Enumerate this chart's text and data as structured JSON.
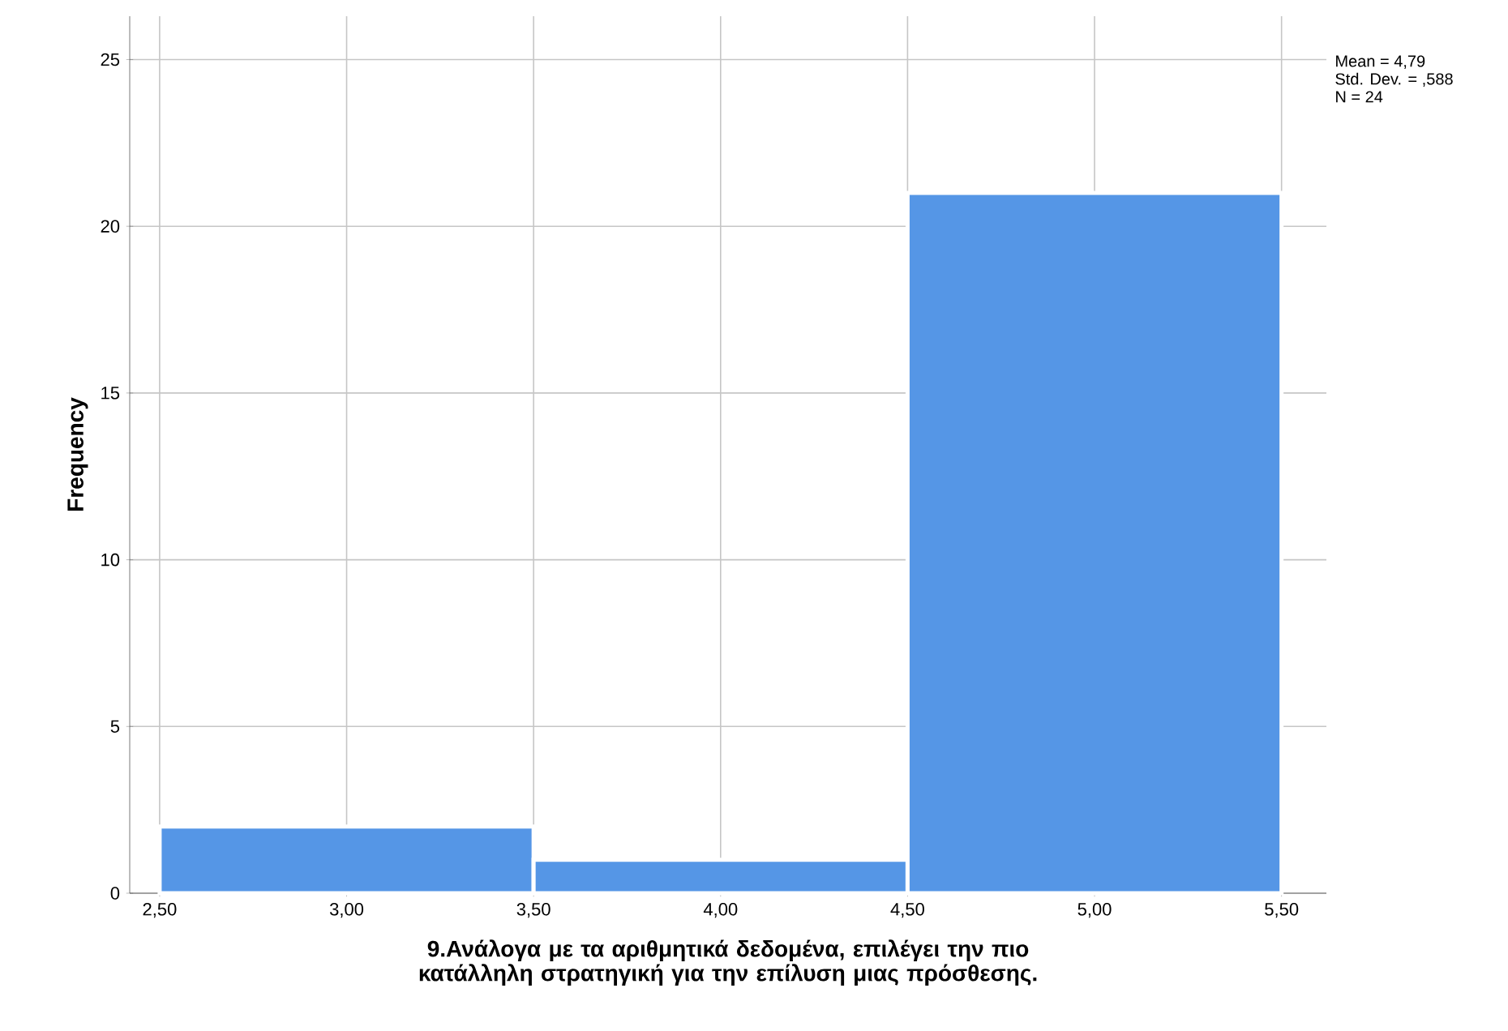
{
  "chart_data": {
    "type": "histogram",
    "xlabel": "9.Ανάλογα με τα αριθμητικά δεδομένα, επιλέγει την πιο κατάλληλη στρατηγική για την επίλυση μιας πρόσθεσης.",
    "ylabel": "Frequency",
    "bins": [
      2.5,
      3.5,
      4.5,
      5.5
    ],
    "values": [
      2,
      1,
      21
    ],
    "color": "#5596e6",
    "xlim": [
      2.42,
      5.62
    ],
    "ylim": [
      0,
      26.3
    ],
    "xticks": [
      {
        "value": 2.5,
        "label": "2,50"
      },
      {
        "value": 3.0,
        "label": "3,00"
      },
      {
        "value": 3.5,
        "label": "3,50"
      },
      {
        "value": 4.0,
        "label": "4,00"
      },
      {
        "value": 4.5,
        "label": "4,50"
      },
      {
        "value": 5.0,
        "label": "5,00"
      },
      {
        "value": 5.5,
        "label": "5,50"
      }
    ],
    "yticks": [
      0,
      5,
      10,
      15,
      20,
      25
    ],
    "grid": true,
    "annotations": [
      "Mean = 4,79",
      "Std. Dev. = ,588",
      "N = 24"
    ]
  }
}
